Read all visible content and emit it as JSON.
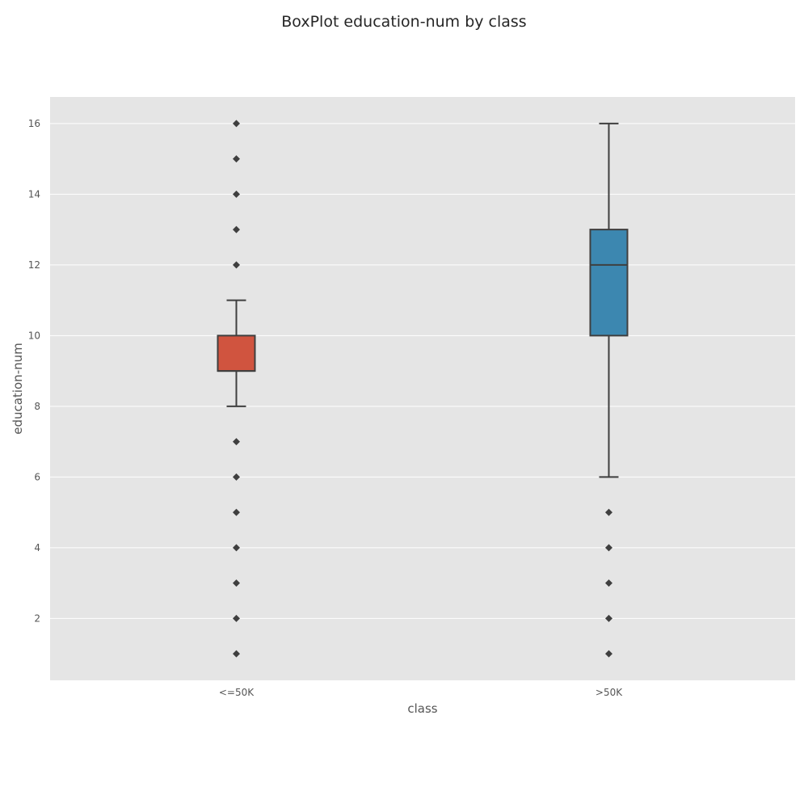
{
  "chart_data": {
    "type": "box",
    "title": "BoxPlot education-num by class",
    "xlabel": "class",
    "ylabel": "education-num",
    "ylim": [
      0.25,
      16.75
    ],
    "yticks": [
      2,
      4,
      6,
      8,
      10,
      12,
      14,
      16
    ],
    "grid": true,
    "categories": [
      "<=50K",
      ">50K"
    ],
    "boxes": [
      {
        "category": "<=50K",
        "color": "#d0543f",
        "whisker_low": 8,
        "q1": 9,
        "median": 9,
        "q3": 10,
        "whisker_high": 11,
        "outliers": [
          1,
          2,
          3,
          4,
          5,
          6,
          7,
          12,
          13,
          14,
          15,
          16
        ]
      },
      {
        "category": ">50K",
        "color": "#3c87b0",
        "whisker_low": 6,
        "q1": 10,
        "median": 12,
        "q3": 13,
        "whisker_high": 16,
        "outliers": [
          1,
          2,
          3,
          4,
          5
        ]
      }
    ]
  }
}
